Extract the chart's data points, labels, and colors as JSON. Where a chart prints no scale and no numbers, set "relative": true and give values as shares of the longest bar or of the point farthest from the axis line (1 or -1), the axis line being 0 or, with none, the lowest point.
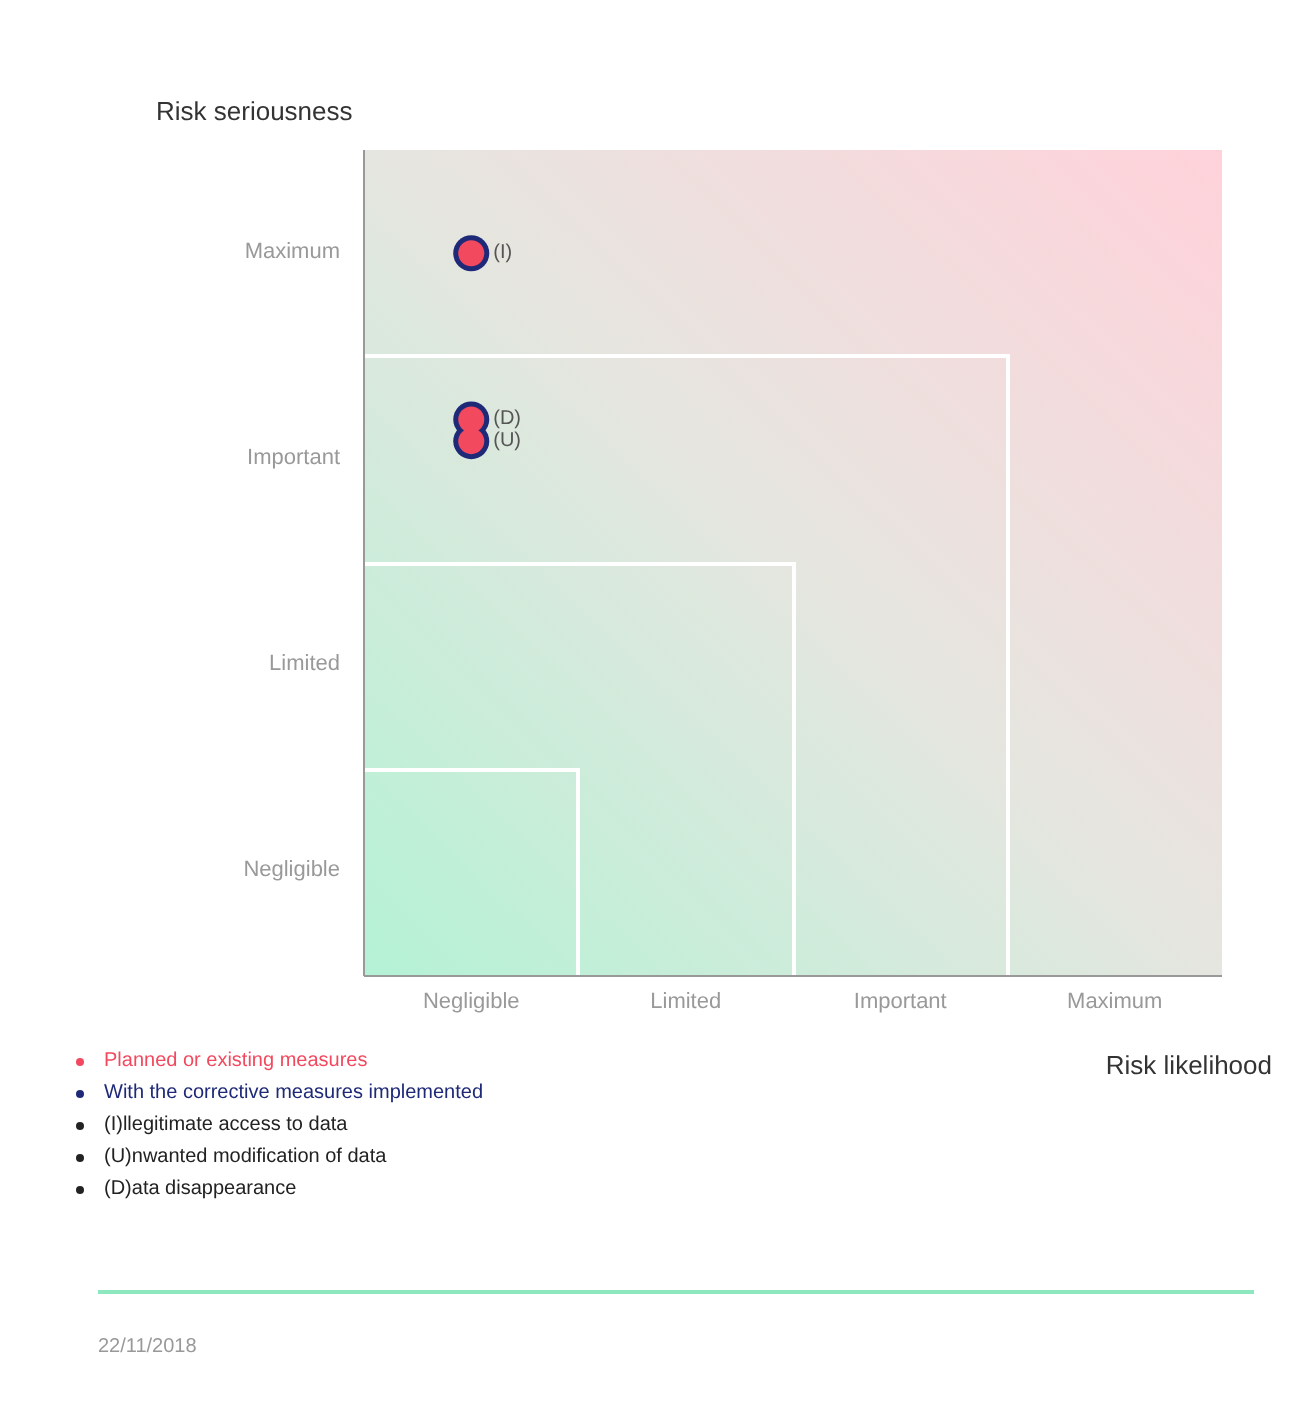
{
  "chart_data": {
    "type": "scatter",
    "xlabel": "Risk likelihood",
    "ylabel": "Risk seriousness",
    "categories": [
      "Negligible",
      "Limited",
      "Important",
      "Maximum"
    ],
    "relative": true,
    "series": [
      {
        "name": "Planned or existing measures",
        "color": "#f2495f",
        "x": [
          "Negligible",
          "Negligible",
          "Negligible"
        ],
        "values": [
          1,
          0.77,
          0.74
        ]
      },
      {
        "name": "With the corrective measures implemented",
        "color": "#1e2a78",
        "x": [
          "Negligible",
          "Negligible",
          "Negligible"
        ],
        "values": [
          1,
          0.77,
          0.74
        ]
      }
    ],
    "marker": "circle",
    "legend": "bottom left",
    "annotations": [
      {
        "text": "(I)",
        "x": "Negligible",
        "y": 1
      },
      {
        "text": "(D)",
        "x": "Negligible",
        "y": 0.77
      },
      {
        "text": "(U)",
        "x": "Negligible",
        "y": 0.74
      },
      "Maximum",
      "Important",
      "Limited",
      "Negligible",
      "(I)llegitimate access to data",
      "(U)nwanted modification of data",
      "(D)ata disappearance",
      "22/11/2018"
    ]
  }
}
